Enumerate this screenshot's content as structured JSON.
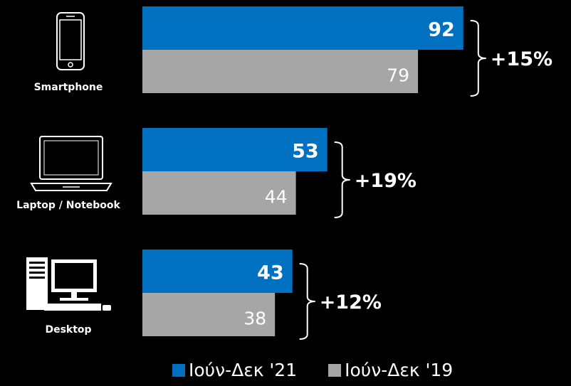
{
  "chart_data": {
    "type": "bar",
    "orientation": "horizontal",
    "categories": [
      "Smartphone",
      "Laptop / Notebook",
      "Desktop"
    ],
    "category_icons": [
      "smartphone-icon",
      "laptop-icon",
      "desktop-computer-icon"
    ],
    "series": [
      {
        "name": "Ιούν-Δεκ '21",
        "color": "#0070c0",
        "values": [
          92,
          53,
          43
        ],
        "labels": [
          "92",
          "53",
          "43"
        ]
      },
      {
        "name": "Ιούν-Δεκ '19",
        "color": "#a6a6a6",
        "values": [
          79,
          44,
          38
        ],
        "labels": [
          "79",
          "44",
          "38"
        ]
      }
    ],
    "growth": [
      "+15%",
      "+19%",
      "+12%"
    ],
    "xlim": [
      0,
      100
    ],
    "grid": false,
    "legend_position": "bottom",
    "background": "#000000"
  }
}
